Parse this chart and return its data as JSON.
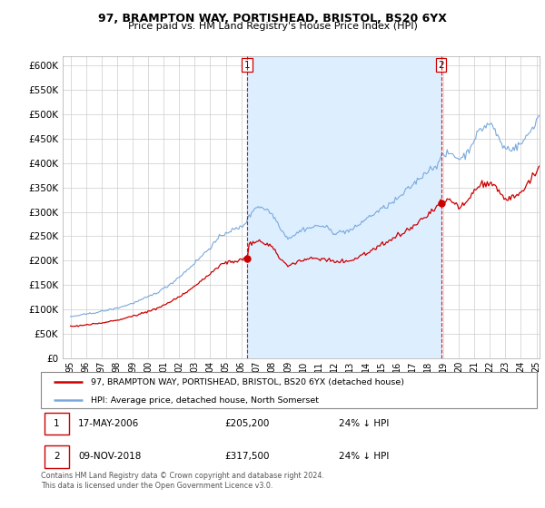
{
  "title": "97, BRAMPTON WAY, PORTISHEAD, BRISTOL, BS20 6YX",
  "subtitle": "Price paid vs. HM Land Registry's House Price Index (HPI)",
  "legend_line1": "97, BRAMPTON WAY, PORTISHEAD, BRISTOL, BS20 6YX (detached house)",
  "legend_line2": "HPI: Average price, detached house, North Somerset",
  "annotation1_label": "1",
  "annotation1_date": "17-MAY-2006",
  "annotation1_price": "£205,200",
  "annotation1_hpi": "24% ↓ HPI",
  "annotation2_label": "2",
  "annotation2_date": "09-NOV-2018",
  "annotation2_price": "£317,500",
  "annotation2_hpi": "24% ↓ HPI",
  "footnote": "Contains HM Land Registry data © Crown copyright and database right 2024.\nThis data is licensed under the Open Government Licence v3.0.",
  "ylim": [
    0,
    620000
  ],
  "yticks": [
    0,
    50000,
    100000,
    150000,
    200000,
    250000,
    300000,
    350000,
    400000,
    450000,
    500000,
    550000,
    600000
  ],
  "red_color": "#cc0000",
  "blue_color": "#7aaadd",
  "shade_color": "#ddeeff",
  "vline_color": "#cc0000",
  "sale1_year": 2006.38,
  "sale1_price": 205200,
  "sale2_year": 2018.86,
  "sale2_price": 317500,
  "xmin": 1995.0,
  "xmax": 2025.2
}
